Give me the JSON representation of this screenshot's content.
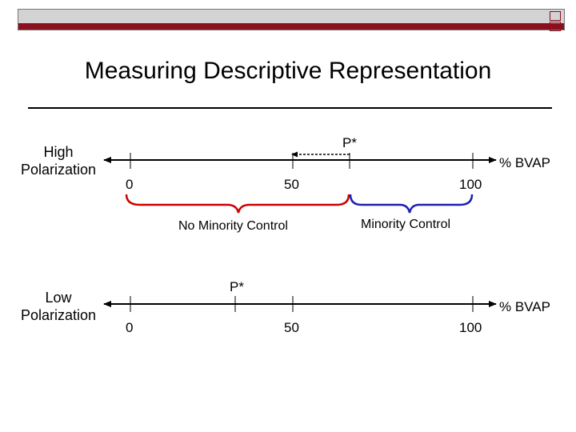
{
  "title": "Measuring Descriptive Representation",
  "colors": {
    "header_red": "#8b0f1e",
    "header_gray": "#d3d3d3",
    "red_brace": "#cc0000",
    "blue_brace": "#1f1fb4"
  },
  "high": {
    "label_line1": "High",
    "label_line2": "Polarization",
    "p_star": "P*",
    "axis_unit": "% BVAP",
    "ticks": [
      "0",
      "50",
      "100"
    ],
    "no_minority": "No Minority Control",
    "minority": "Minority Control"
  },
  "low": {
    "label_line1": "Low",
    "label_line2": "Polarization",
    "p_star": "P*",
    "axis_unit": "% BVAP",
    "ticks": [
      "0",
      "50",
      "100"
    ]
  }
}
